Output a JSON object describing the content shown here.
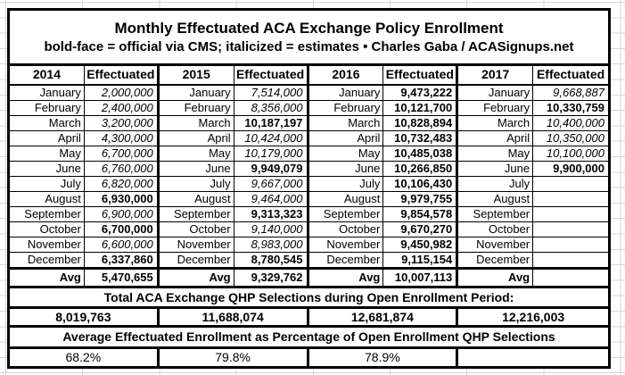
{
  "title": "Monthly Effectuated ACA Exchange Policy Enrollment",
  "subtitle": "bold-face = official via CMS; italicized = estimates  •  Charles Gaba / ACASignups.net",
  "table": {
    "value_header": "Effectuated",
    "avg_label": "Avg",
    "months": [
      "January",
      "February",
      "March",
      "April",
      "May",
      "June",
      "July",
      "August",
      "September",
      "October",
      "November",
      "December"
    ],
    "series": [
      {
        "year": "2014",
        "values": [
          "2,000,000",
          "2,400,000",
          "3,200,000",
          "4,300,000",
          "6,700,000",
          "6,760,000",
          "6,820,000",
          "6,930,000",
          "6,900,000",
          "6,700,000",
          "6,600,000",
          "6,337,860"
        ],
        "styles": [
          "i",
          "i",
          "i",
          "i",
          "i",
          "i",
          "i",
          "b",
          "i",
          "b",
          "i",
          "b"
        ],
        "avg": "5,470,655",
        "avg_style": "b"
      },
      {
        "year": "2015",
        "values": [
          "7,514,000",
          "8,356,000",
          "10,187,197",
          "10,424,000",
          "10,179,000",
          "9,949,079",
          "9,667,000",
          "9,464,000",
          "9,313,323",
          "9,140,000",
          "8,983,000",
          "8,780,545"
        ],
        "styles": [
          "i",
          "i",
          "b",
          "i",
          "i",
          "b",
          "i",
          "i",
          "b",
          "i",
          "i",
          "b"
        ],
        "avg": "9,329,762",
        "avg_style": "b"
      },
      {
        "year": "2016",
        "values": [
          "9,473,222",
          "10,121,700",
          "10,828,894",
          "10,732,483",
          "10,485,038",
          "10,266,850",
          "10,106,430",
          "9,979,755",
          "9,854,578",
          "9,670,270",
          "9,450,982",
          "9,115,154"
        ],
        "styles": [
          "b",
          "b",
          "b",
          "b",
          "b",
          "b",
          "b",
          "b",
          "b",
          "b",
          "b",
          "b"
        ],
        "avg": "10,007,113",
        "avg_style": "b"
      },
      {
        "year": "2017",
        "values": [
          "9,668,887",
          "10,330,759",
          "10,400,000",
          "10,350,000",
          "10,100,000",
          "9,900,000",
          "",
          "",
          "",
          "",
          "",
          ""
        ],
        "styles": [
          "i",
          "b",
          "i",
          "i",
          "i",
          "b",
          "",
          "",
          "",
          "",
          "",
          ""
        ],
        "avg": "",
        "avg_style": ""
      }
    ]
  },
  "totals": {
    "header": "Total ACA Exchange QHP Selections during Open Enrollment Period:",
    "values": [
      "8,019,763",
      "11,688,074",
      "12,681,874",
      "12,216,003"
    ]
  },
  "percentages": {
    "header": "Average Effectuated Enrollment as Percentage of Open Enrollment QHP Selections",
    "values": [
      "68.2%",
      "79.8%",
      "78.9%",
      ""
    ]
  }
}
